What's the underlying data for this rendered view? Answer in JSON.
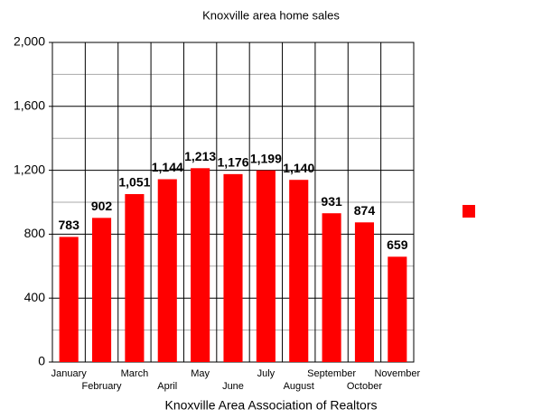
{
  "chart_data": {
    "type": "bar",
    "title": "Knoxville area home sales",
    "x_label": "Knoxville Area Association of Realtors",
    "categories": [
      "January",
      "February",
      "March",
      "April",
      "May",
      "June",
      "July",
      "August",
      "September",
      "October",
      "November"
    ],
    "values": [
      783,
      902,
      1051,
      1144,
      1213,
      1176,
      1199,
      1140,
      931,
      874,
      659
    ],
    "value_labels": [
      "783",
      "902",
      "1,051",
      "1,144",
      "1,213",
      "1,176",
      "1,199",
      "1,140",
      "931",
      "874",
      "659"
    ],
    "color": "#ff0000",
    "ylim": [
      0,
      2000
    ],
    "yticks": [
      0,
      400,
      800,
      {
        "value": 1200,
        "label": "1,200"
      },
      {
        "value": 1600,
        "label": "1,600"
      },
      {
        "value": 2000,
        "label": "2,000"
      }
    ],
    "grid": true
  }
}
